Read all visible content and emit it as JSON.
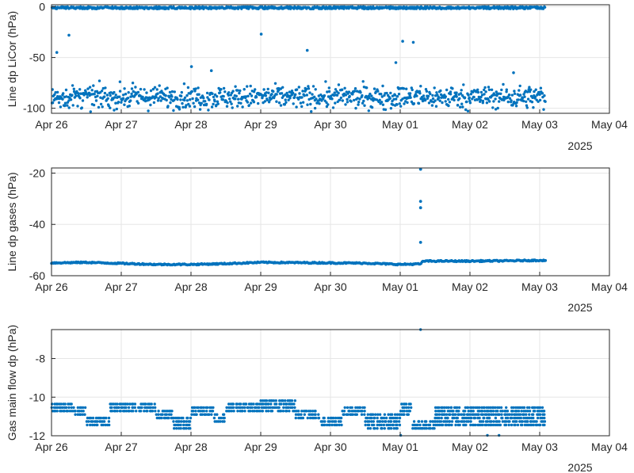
{
  "figure": {
    "background": "#ffffff",
    "axis_color": "#262626",
    "grid_color": "#e6e6e6"
  },
  "chart_data": [
    {
      "type": "scatter",
      "ylabel": "Line dp LiCor (hPa)",
      "x_ticks": [
        "Apr 26",
        "Apr 27",
        "Apr 28",
        "Apr 29",
        "Apr 30",
        "May 01",
        "May 02",
        "May 03",
        "May 04"
      ],
      "x_secondary_label": "2025",
      "xlim": [
        "2025-04-26",
        "2025-05-04"
      ],
      "data_end": "2025-05-03 02:00",
      "ylim": [
        -105,
        2
      ],
      "y_ticks": [
        0,
        -50,
        -100
      ],
      "grid": true,
      "marker_color": "#0072bd",
      "series": [
        {
          "band": "upper",
          "center": -1,
          "spread": 1.5
        },
        {
          "band": "lower",
          "center": -89,
          "spread": 12
        }
      ],
      "outliers": [
        {
          "x": "2025-04-26 01:50",
          "y": -45
        },
        {
          "x": "2025-04-26 06:00",
          "y": -28
        },
        {
          "x": "2025-04-28 00:10",
          "y": -59
        },
        {
          "x": "2025-04-28 07:00",
          "y": -63
        },
        {
          "x": "2025-04-29 00:10",
          "y": -27
        },
        {
          "x": "2025-04-29 16:00",
          "y": -43
        },
        {
          "x": "2025-04-30 22:30",
          "y": -55
        },
        {
          "x": "2025-05-01 00:50",
          "y": -34
        },
        {
          "x": "2025-05-01 04:30",
          "y": -35
        },
        {
          "x": "2025-05-02 15:00",
          "y": -65
        }
      ]
    },
    {
      "type": "scatter",
      "ylabel": "Line dp gases (hPa)",
      "x_ticks": [
        "Apr 26",
        "Apr 27",
        "Apr 28",
        "Apr 29",
        "Apr 30",
        "May 01",
        "May 02",
        "May 03",
        "May 04"
      ],
      "x_secondary_label": "2025",
      "xlim": [
        "2025-04-26",
        "2025-05-04"
      ],
      "ylim": [
        -60,
        -18
      ],
      "y_ticks": [
        -20,
        -40,
        -60
      ],
      "grid": true,
      "marker_color": "#0072bd",
      "x": [
        "2025-04-26",
        "2025-04-26 12:00",
        "2025-04-27",
        "2025-04-27 12:00",
        "2025-04-28",
        "2025-04-28 12:00",
        "2025-04-29",
        "2025-04-29 12:00",
        "2025-04-30",
        "2025-04-30 12:00",
        "2025-05-01",
        "2025-05-01 07:00",
        "2025-05-01 08:00",
        "2025-05-02",
        "2025-05-02 12:00",
        "2025-05-03",
        "2025-05-03 02:00"
      ],
      "y": [
        -55,
        -54.8,
        -55.2,
        -55.6,
        -55.6,
        -55.3,
        -54.8,
        -54.9,
        -55,
        -55.1,
        -55.6,
        -55.4,
        -54.3,
        -54.3,
        -54.2,
        -54,
        -54
      ],
      "spike": {
        "x": "2025-05-01 07:00",
        "y": [
          -18.5,
          -31,
          -33.5,
          -47
        ]
      }
    },
    {
      "type": "scatter",
      "ylabel": "Gas main flow dp (hPa)",
      "x_ticks": [
        "Apr 26",
        "Apr 27",
        "Apr 28",
        "Apr 29",
        "Apr 30",
        "May 01",
        "May 02",
        "May 03",
        "May 04"
      ],
      "x_secondary_label": "2025",
      "xlim": [
        "2025-04-26",
        "2025-05-04"
      ],
      "ylim": [
        -12,
        -6.5
      ],
      "y_ticks": [
        -8,
        -10,
        -12
      ],
      "grid": true,
      "marker_color": "#0072bd",
      "quantization": 0.18,
      "segments": [
        {
          "from": "2025-04-26 00:00",
          "to": "2025-04-26 08:00",
          "levels": [
            -10.36,
            -10.54,
            -10.72
          ]
        },
        {
          "from": "2025-04-26 08:00",
          "to": "2025-04-26 12:00",
          "levels": [
            -10.54,
            -10.72,
            -10.9
          ]
        },
        {
          "from": "2025-04-26 12:00",
          "to": "2025-04-26 20:00",
          "levels": [
            -11.08,
            -11.26,
            -11.44
          ]
        },
        {
          "from": "2025-04-26 20:00",
          "to": "2025-04-27 12:00",
          "levels": [
            -10.36,
            -10.54,
            -10.72
          ]
        },
        {
          "from": "2025-04-27 12:00",
          "to": "2025-04-27 18:00",
          "levels": [
            -10.72,
            -10.9,
            -11.08
          ]
        },
        {
          "from": "2025-04-27 18:00",
          "to": "2025-04-28 00:00",
          "levels": [
            -11.08,
            -11.26,
            -11.44,
            -11.62
          ]
        },
        {
          "from": "2025-04-28 00:00",
          "to": "2025-04-28 08:00",
          "levels": [
            -10.54,
            -10.72,
            -10.9
          ]
        },
        {
          "from": "2025-04-28 08:00",
          "to": "2025-04-28 12:00",
          "levels": [
            -10.9,
            -11.08,
            -11.26
          ]
        },
        {
          "from": "2025-04-28 12:00",
          "to": "2025-04-29 00:00",
          "levels": [
            -10.36,
            -10.54,
            -10.72
          ]
        },
        {
          "from": "2025-04-29 00:00",
          "to": "2025-04-29 12:00",
          "levels": [
            -10.18,
            -10.36,
            -10.54,
            -10.72
          ]
        },
        {
          "from": "2025-04-29 12:00",
          "to": "2025-04-29 20:00",
          "levels": [
            -10.72,
            -10.9,
            -11.08
          ]
        },
        {
          "from": "2025-04-29 20:00",
          "to": "2025-04-30 04:00",
          "levels": [
            -11.08,
            -11.26,
            -11.44
          ]
        },
        {
          "from": "2025-04-30 04:00",
          "to": "2025-04-30 12:00",
          "levels": [
            -10.54,
            -10.72,
            -10.9
          ]
        },
        {
          "from": "2025-04-30 12:00",
          "to": "2025-05-01 00:00",
          "levels": [
            -10.9,
            -11.08,
            -11.26,
            -11.44,
            -11.62
          ]
        },
        {
          "from": "2025-05-01 00:00",
          "to": "2025-05-01 04:00",
          "levels": [
            -10.36,
            -10.54,
            -10.72,
            -10.9
          ]
        },
        {
          "from": "2025-05-01 04:00",
          "to": "2025-05-01 12:00",
          "levels": [
            -11.26,
            -11.44,
            -11.62
          ]
        },
        {
          "from": "2025-05-01 12:00",
          "to": "2025-05-03 02:00",
          "levels": [
            -10.54,
            -10.72,
            -10.9,
            -11.08,
            -11.26,
            -11.44
          ]
        }
      ],
      "outliers": [
        {
          "x": "2025-05-01 07:00",
          "y": -6.5
        },
        {
          "x": "2025-05-01 00:10",
          "y": -11.98
        },
        {
          "x": "2025-05-02 06:00",
          "y": -11.98
        },
        {
          "x": "2025-05-02 10:00",
          "y": -11.98
        }
      ]
    }
  ]
}
